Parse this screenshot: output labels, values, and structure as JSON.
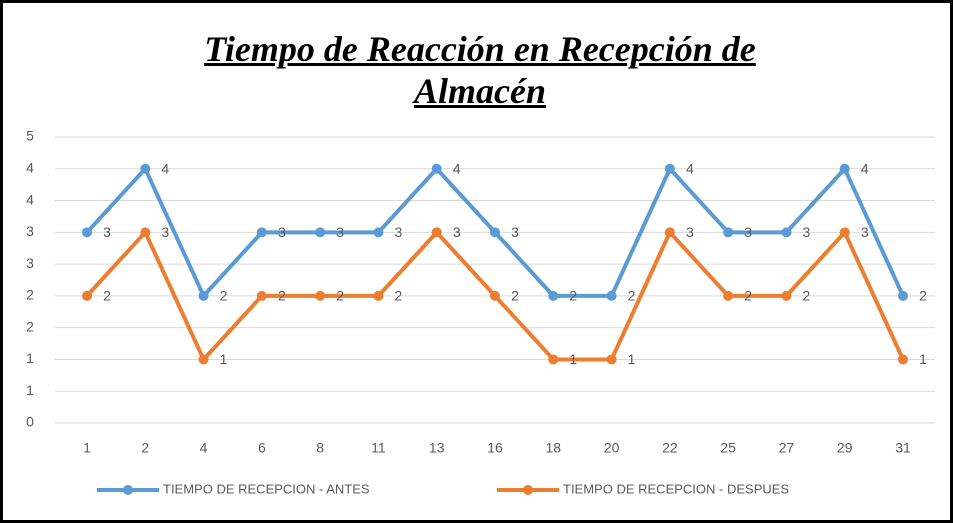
{
  "chart_data": {
    "type": "line",
    "title": "Tiempo de Reacción en Recepción de Almacén",
    "categories": [
      "1",
      "2",
      "4",
      "6",
      "8",
      "11",
      "13",
      "16",
      "18",
      "20",
      "22",
      "25",
      "27",
      "29",
      "31"
    ],
    "series": [
      {
        "name": "TIEMPO DE RECEPCION - ANTES",
        "color": "#5b9bd5",
        "values": [
          3,
          4,
          2,
          3,
          3,
          3,
          4,
          3,
          2,
          2,
          4,
          3,
          3,
          4,
          2
        ]
      },
      {
        "name": "TIEMPO DE RECEPCION - DESPUES",
        "color": "#ed7d31",
        "values": [
          2,
          3,
          1,
          2,
          2,
          2,
          3,
          2,
          1,
          1,
          3,
          2,
          2,
          3,
          1
        ]
      }
    ],
    "ylim": [
      0,
      4.5
    ],
    "yticks": [
      0,
      {
        "value": 0.5,
        "label": "1"
      },
      1,
      {
        "value": 1.5,
        "label": "2"
      },
      2,
      {
        "value": 2.5,
        "label": "3"
      },
      3,
      {
        "value": 3.5,
        "label": "4"
      },
      4,
      {
        "value": 4.5,
        "label": "5"
      }
    ],
    "grid": true,
    "legend": "bottom"
  }
}
